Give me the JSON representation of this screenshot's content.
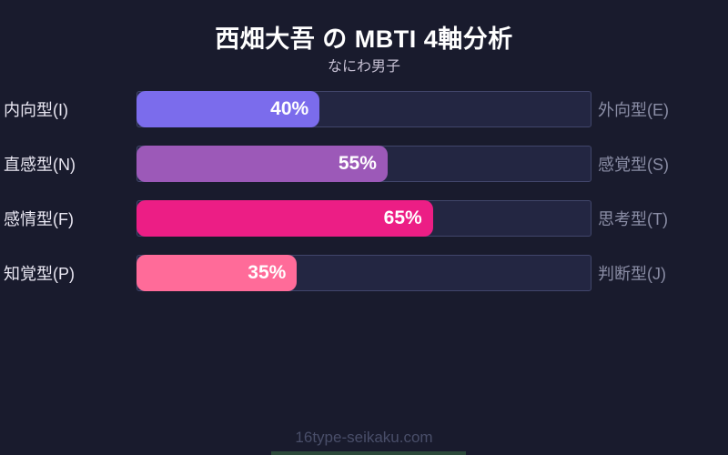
{
  "header": {
    "title": "西畑大吾 の MBTI 4軸分析",
    "subtitle": "なにわ男子"
  },
  "footer": {
    "site": "16type-seikaku.com"
  },
  "colors": {
    "background": "#191B2D",
    "track": "#232642",
    "track_border": "#41466B",
    "title_text": "#FFFFFF",
    "subtitle_text": "#C5BFD2",
    "left_label_text": "#E9E7F2",
    "right_label_text": "#8A8DA5",
    "footer_text": "#494E69",
    "bottom_strip": "#2C4A3B"
  },
  "chart_data": {
    "type": "bar",
    "title": "西畑大吾 の MBTI 4軸分析",
    "subtitle": "なにわ男子",
    "orientation": "horizontal",
    "xlim": [
      0,
      100
    ],
    "grid": false,
    "legend": false,
    "axes": [
      {
        "left_label": "内向型(I)",
        "right_label": "外向型(E)",
        "value": 40,
        "value_label": "40%",
        "color": "#7B6CEC"
      },
      {
        "left_label": "直感型(N)",
        "right_label": "感覚型(S)",
        "value": 55,
        "value_label": "55%",
        "color": "#9C59B8"
      },
      {
        "left_label": "感情型(F)",
        "right_label": "思考型(T)",
        "value": 65,
        "value_label": "65%",
        "color": "#EC1E85"
      },
      {
        "left_label": "知覚型(P)",
        "right_label": "判断型(J)",
        "value": 35,
        "value_label": "35%",
        "color": "#FF6B99"
      }
    ]
  }
}
